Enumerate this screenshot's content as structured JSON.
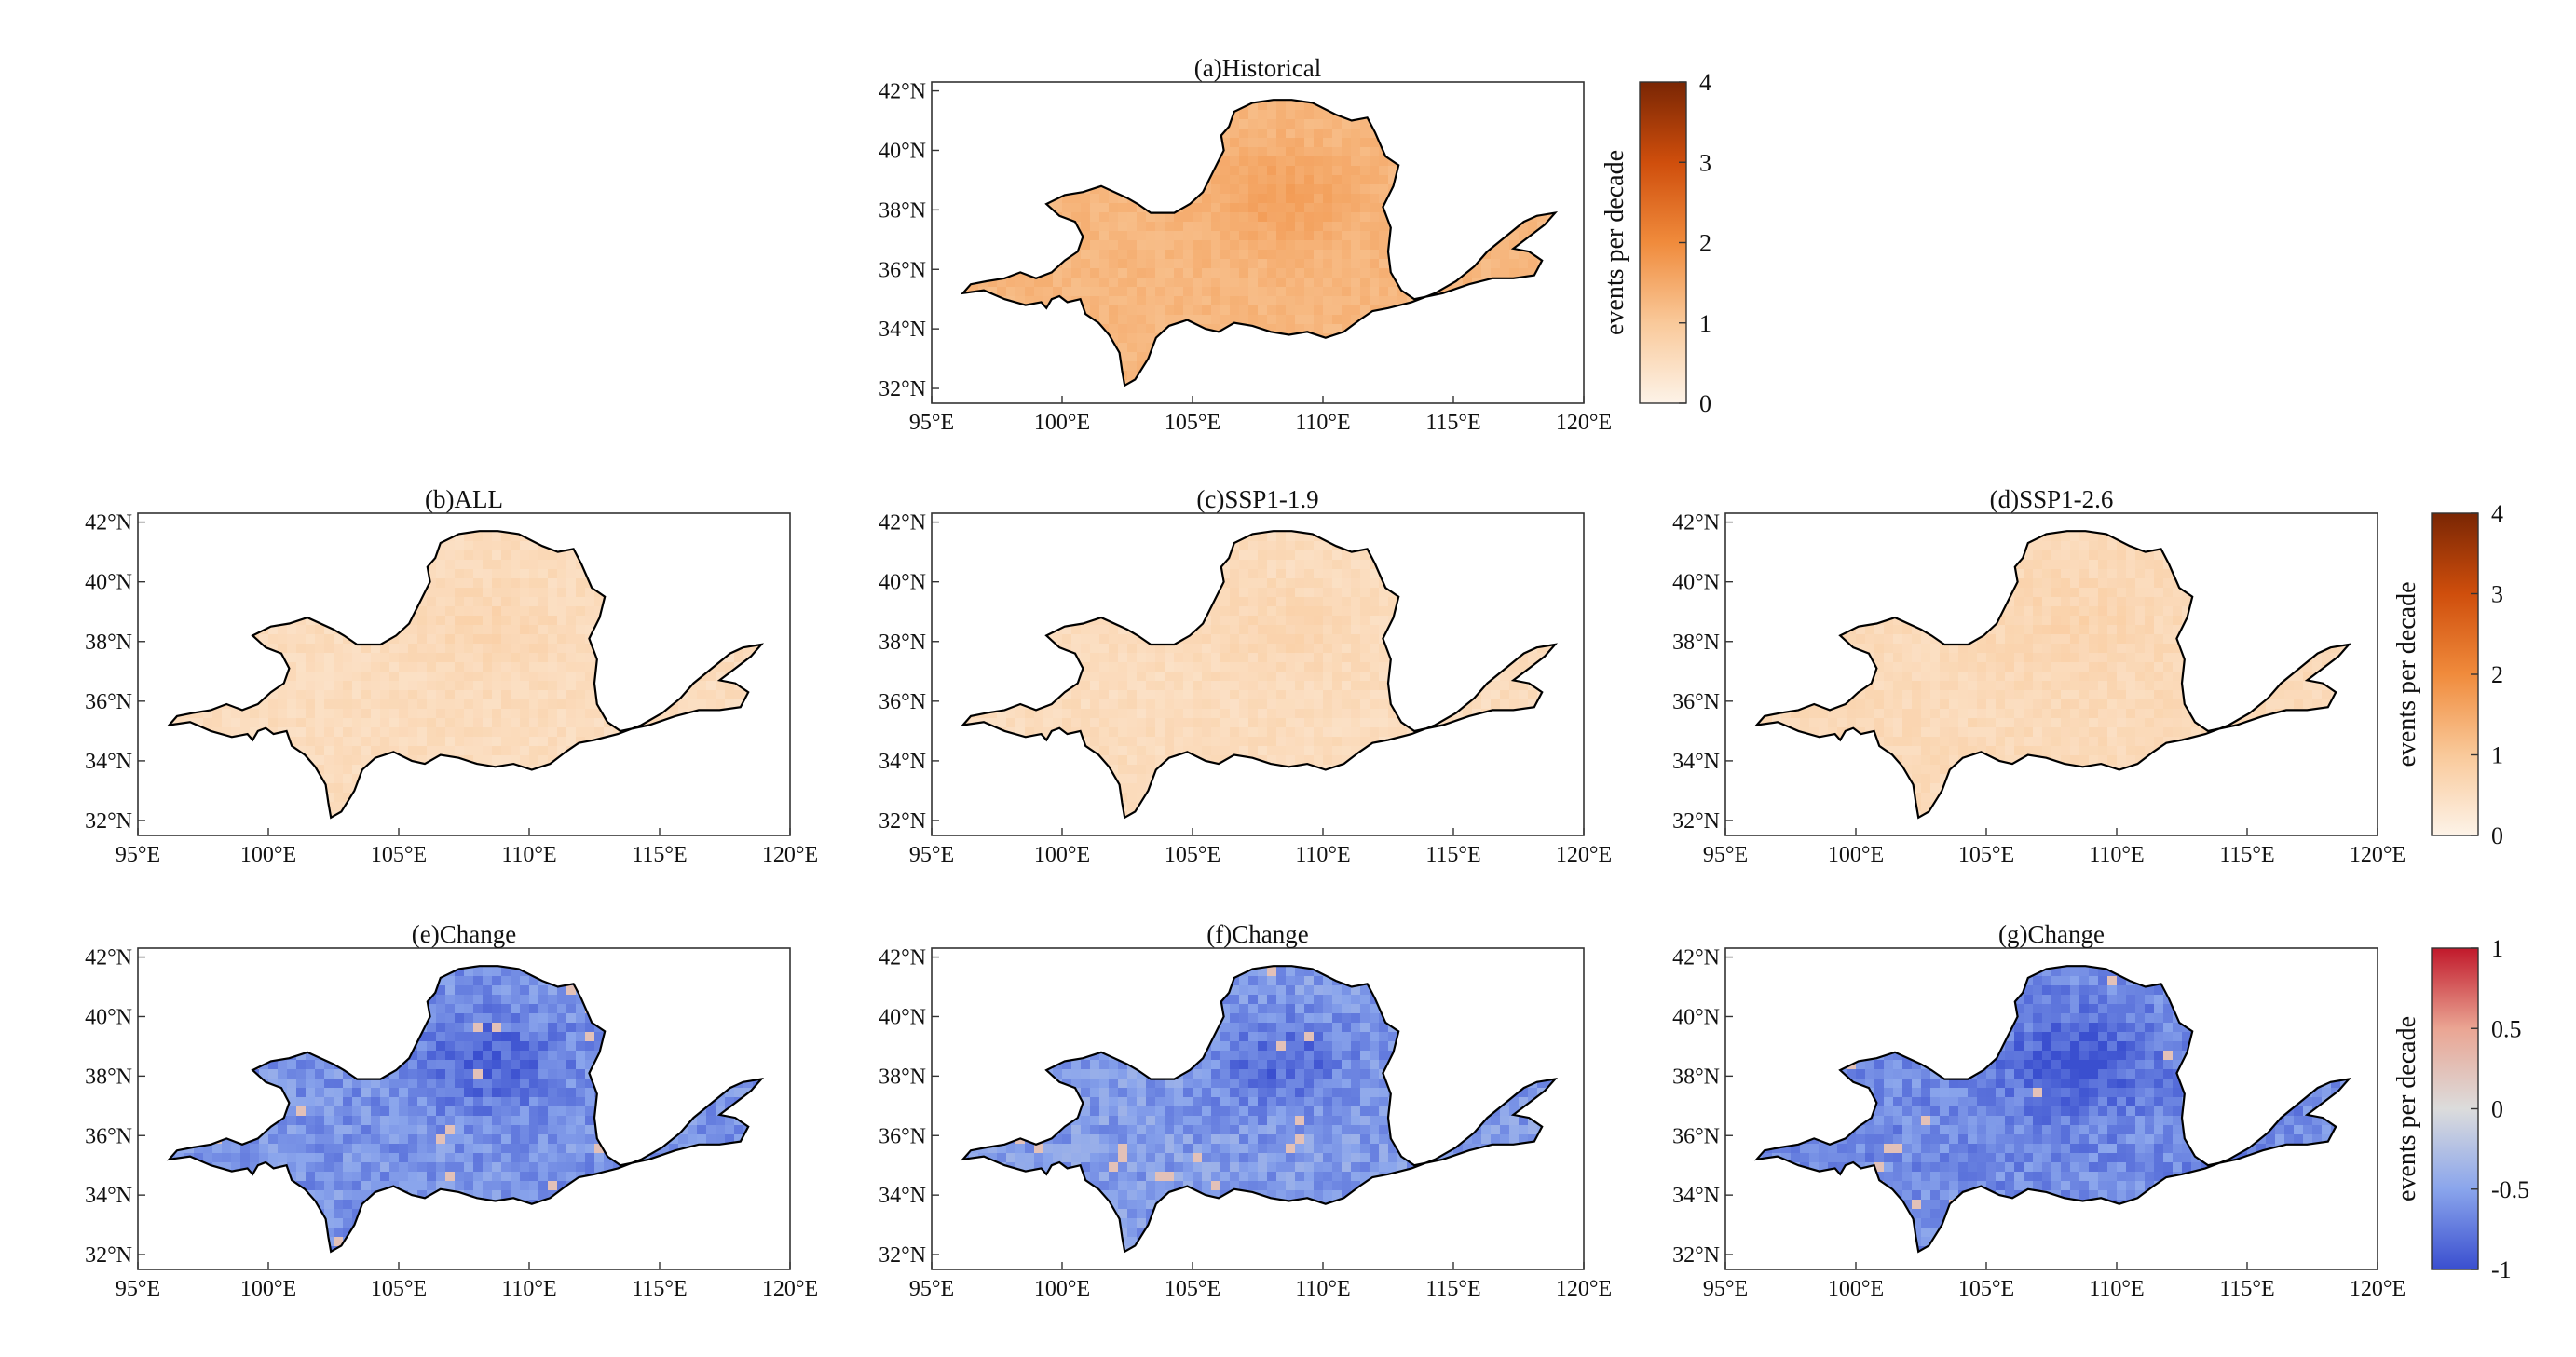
{
  "figure": {
    "lon_ticks": [
      "95°E",
      "100°E",
      "105°E",
      "110°E",
      "115°E",
      "120°E"
    ],
    "lat_ticks": [
      "32°N",
      "34°N",
      "36°N",
      "38°N",
      "40°N",
      "42°N"
    ],
    "lon_range": [
      95,
      120
    ],
    "lat_range": [
      31.5,
      42.3
    ]
  },
  "panels": [
    {
      "id": "a",
      "title": "(a)Historical",
      "ramp": "orange",
      "intensity": 1.3,
      "hotspot": 0.35
    },
    {
      "id": "b",
      "title": "(b)ALL",
      "ramp": "orange",
      "intensity": 0.55,
      "hotspot": 0.15
    },
    {
      "id": "c",
      "title": "(c)SSP1-1.9",
      "ramp": "orange",
      "intensity": 0.55,
      "hotspot": 0.15
    },
    {
      "id": "d",
      "title": "(d)SSP1-2.6",
      "ramp": "orange",
      "intensity": 0.6,
      "hotspot": 0.15
    },
    {
      "id": "e",
      "title": "(e)Change",
      "ramp": "diverging",
      "intensity": -0.6,
      "hotspot": -0.3
    },
    {
      "id": "f",
      "title": "(f)Change",
      "ramp": "diverging",
      "intensity": -0.55,
      "hotspot": -0.3
    },
    {
      "id": "g",
      "title": "(g)Change",
      "ramp": "diverging",
      "intensity": -0.65,
      "hotspot": -0.35
    }
  ],
  "colorbars": [
    {
      "id": "cb-a",
      "label": "events per decade",
      "ticks": [
        "0",
        "1",
        "2",
        "3",
        "4"
      ],
      "ramp": "orange",
      "range": [
        0,
        4
      ]
    },
    {
      "id": "cb-d",
      "label": "events per decade",
      "ticks": [
        "0",
        "1",
        "2",
        "3",
        "4"
      ],
      "ramp": "orange",
      "range": [
        0,
        4
      ]
    },
    {
      "id": "cb-g",
      "label": "events per decade",
      "ticks": [
        "-1",
        "-0.5",
        "0",
        "0.5",
        "1"
      ],
      "ramp": "diverging",
      "range": [
        -1,
        1
      ]
    }
  ],
  "colors": {
    "orange_ramp": [
      "#fdf3e8",
      "#f9c99a",
      "#f08b3c",
      "#cf4e0c",
      "#7a2604"
    ],
    "diverging_ramp": [
      "#3a4fcf",
      "#8aa5ec",
      "#dcdcdc",
      "#eaa593",
      "#c1192b"
    ],
    "outline": "#000000"
  }
}
